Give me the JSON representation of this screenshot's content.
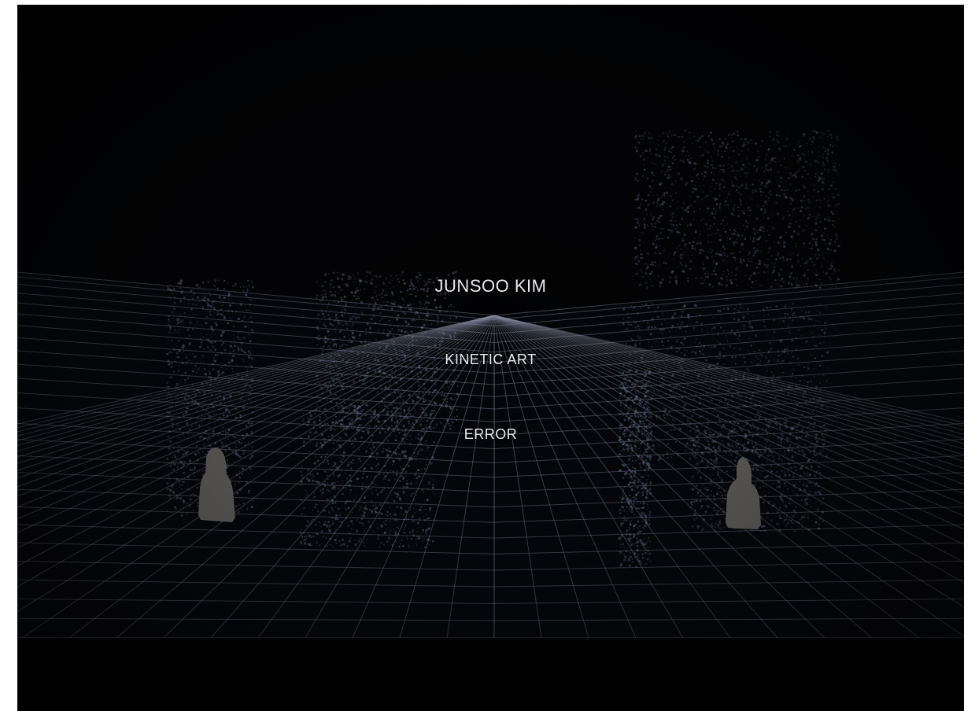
{
  "overlay": {
    "title": "JUNSOO KIM",
    "subtitle": "KINETIC ART",
    "work": "ERROR"
  },
  "colors": {
    "background": "#020203",
    "page_border": "#ffffff",
    "grid_line": "#8a90a6",
    "particle": "#6b7fa0",
    "silhouette": "#6e6c69",
    "text": "#e9e9ec"
  },
  "icons": {
    "figure_left": "human-silhouette-icon",
    "figure_right": "human-silhouette-icon"
  }
}
